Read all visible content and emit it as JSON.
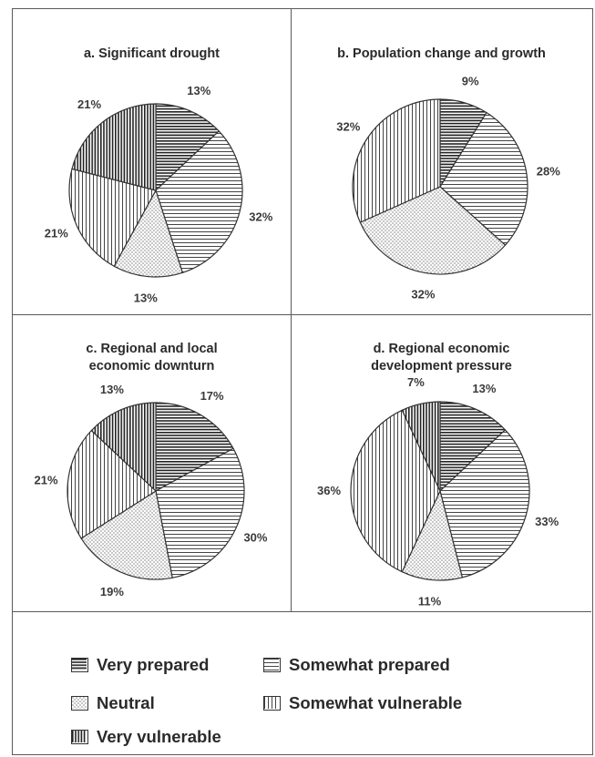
{
  "legend": [
    {
      "label": "Very prepared",
      "pattern": "hstripe-dense"
    },
    {
      "label": "Somewhat prepared",
      "pattern": "hstripe"
    },
    {
      "label": "Neutral",
      "pattern": "dots"
    },
    {
      "label": "Somewhat vulnerable",
      "pattern": "vstripe"
    },
    {
      "label": "Very vulnerable",
      "pattern": "vstripe-dense"
    }
  ],
  "chart_data": [
    {
      "type": "pie",
      "title": "a. Significant drought",
      "categories": [
        "Very prepared",
        "Somewhat prepared",
        "Neutral",
        "Somewhat vulnerable",
        "Very vulnerable"
      ],
      "values": [
        13,
        32,
        13,
        21,
        21
      ],
      "labels": [
        "13%",
        "32%",
        "13%",
        "21%",
        "21%"
      ]
    },
    {
      "type": "pie",
      "title": "b. Population change and growth",
      "categories": [
        "Very prepared",
        "Somewhat prepared",
        "Neutral",
        "Somewhat vulnerable"
      ],
      "values": [
        9,
        28,
        32,
        32
      ],
      "labels": [
        "9%",
        "28%",
        "32%",
        "32%"
      ]
    },
    {
      "type": "pie",
      "title": "c. Regional and local\neconomic downturn",
      "categories": [
        "Very prepared",
        "Somewhat prepared",
        "Neutral",
        "Somewhat vulnerable",
        "Very vulnerable"
      ],
      "values": [
        17,
        30,
        19,
        21,
        13
      ],
      "labels": [
        "17%",
        "30%",
        "19%",
        "21%",
        "13%"
      ]
    },
    {
      "type": "pie",
      "title": "d. Regional economic\ndevelopment pressure",
      "categories": [
        "Very prepared",
        "Somewhat prepared",
        "Neutral",
        "Somewhat vulnerable",
        "Very vulnerable"
      ],
      "values": [
        13,
        33,
        11,
        36,
        7
      ],
      "labels": [
        "13%",
        "33%",
        "11%",
        "36%",
        "7%"
      ]
    }
  ]
}
